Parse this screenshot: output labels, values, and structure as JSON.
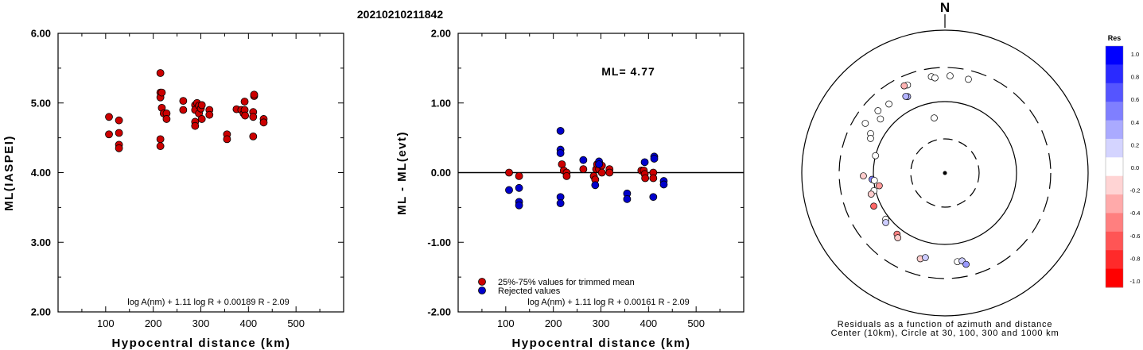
{
  "figure_title": "20210210211842",
  "chart_data": [
    {
      "type": "scatter",
      "title": "",
      "ylabel": "ML(IASPEI)",
      "xlabel": "Hypocentral distance (km)",
      "xlim": [
        0,
        600
      ],
      "ylim": [
        2.0,
        6.0
      ],
      "x_ticks": [
        "100",
        "200",
        "300",
        "400",
        "500"
      ],
      "y_ticks": [
        "2.00",
        "3.00",
        "4.00",
        "5.00",
        "6.00"
      ],
      "formula": "log A(nm) + 1.11 log R + 0.00189 R - 2.09",
      "marker_color": "#cc0000",
      "points": [
        [
          107,
          4.8
        ],
        [
          107,
          4.55
        ],
        [
          128,
          4.75
        ],
        [
          128,
          4.57
        ],
        [
          128,
          4.4
        ],
        [
          128,
          4.35
        ],
        [
          215,
          5.43
        ],
        [
          215,
          5.15
        ],
        [
          215,
          5.08
        ],
        [
          215,
          4.48
        ],
        [
          215,
          4.38
        ],
        [
          218,
          4.93
        ],
        [
          218,
          5.15
        ],
        [
          222,
          4.85
        ],
        [
          228,
          4.85
        ],
        [
          228,
          4.77
        ],
        [
          263,
          5.03
        ],
        [
          263,
          4.9
        ],
        [
          288,
          4.97
        ],
        [
          288,
          4.9
        ],
        [
          288,
          4.73
        ],
        [
          288,
          4.67
        ],
        [
          292,
          5.0
        ],
        [
          296,
          4.96
        ],
        [
          296,
          4.85
        ],
        [
          300,
          4.92
        ],
        [
          302,
          4.77
        ],
        [
          302,
          4.97
        ],
        [
          318,
          4.9
        ],
        [
          318,
          4.83
        ],
        [
          355,
          4.55
        ],
        [
          355,
          4.48
        ],
        [
          375,
          4.91
        ],
        [
          385,
          4.9
        ],
        [
          390,
          4.85
        ],
        [
          392,
          5.02
        ],
        [
          392,
          4.9
        ],
        [
          393,
          4.82
        ],
        [
          410,
          4.87
        ],
        [
          410,
          4.8
        ],
        [
          410,
          4.52
        ],
        [
          412,
          5.1
        ],
        [
          412,
          5.12
        ],
        [
          432,
          4.77
        ],
        [
          432,
          4.72
        ]
      ]
    },
    {
      "type": "scatter",
      "title": "",
      "ylabel": "ML - ML(evt)",
      "xlabel": "Hypocentral distance (km)",
      "xlim": [
        0,
        600
      ],
      "ylim": [
        -2.0,
        2.0
      ],
      "x_ticks": [
        "100",
        "200",
        "300",
        "400",
        "500"
      ],
      "y_ticks": [
        "-2.00",
        "-1.00",
        "0.00",
        "1.00",
        "2.00"
      ],
      "annotation": "ML=  4.77",
      "formula": "log A(nm) + 1.11 log R + 0.00161 R - 2.09",
      "legend": [
        {
          "label": "25%-75% values for trimmed mean",
          "color": "#cc0000"
        },
        {
          "label": "Rejected values",
          "color": "#0000cc"
        }
      ],
      "series": [
        {
          "name": "25%-75% values for trimmed mean",
          "color": "#cc0000",
          "points": [
            [
              107,
              0.0
            ],
            [
              128,
              -0.05
            ],
            [
              218,
              0.12
            ],
            [
              222,
              0.03
            ],
            [
              228,
              0.0
            ],
            [
              228,
              -0.05
            ],
            [
              263,
              0.05
            ],
            [
              285,
              -0.05
            ],
            [
              288,
              -0.1
            ],
            [
              290,
              0.05
            ],
            [
              292,
              0.12
            ],
            [
              296,
              0.05
            ],
            [
              302,
              0.1
            ],
            [
              302,
              0.0
            ],
            [
              318,
              0.05
            ],
            [
              318,
              0.0
            ],
            [
              385,
              0.03
            ],
            [
              390,
              0.03
            ],
            [
              392,
              -0.02
            ],
            [
              393,
              -0.08
            ],
            [
              410,
              0.0
            ],
            [
              410,
              -0.08
            ]
          ]
        },
        {
          "name": "Rejected values",
          "color": "#0000cc",
          "points": [
            [
              107,
              -0.25
            ],
            [
              128,
              -0.22
            ],
            [
              128,
              -0.42
            ],
            [
              128,
              -0.47
            ],
            [
              215,
              0.6
            ],
            [
              215,
              0.33
            ],
            [
              215,
              0.28
            ],
            [
              215,
              -0.35
            ],
            [
              215,
              -0.44
            ],
            [
              263,
              0.18
            ],
            [
              288,
              -0.18
            ],
            [
              296,
              0.16
            ],
            [
              296,
              0.12
            ],
            [
              355,
              -0.3
            ],
            [
              355,
              -0.38
            ],
            [
              392,
              0.15
            ],
            [
              410,
              -0.35
            ],
            [
              412,
              0.23
            ],
            [
              412,
              0.2
            ],
            [
              432,
              -0.12
            ],
            [
              432,
              -0.17
            ]
          ]
        }
      ]
    },
    {
      "type": "scatter",
      "title": "N",
      "subtitle": "Residuals as a function of azimuth and distance",
      "caption": "Center (10km), Circle at 30, 100, 300 and 1000 km",
      "colorbar_title": "Res",
      "colorbar_ticks": [
        "1.0",
        "0.8",
        "0.6",
        "0.4",
        "0.2",
        "0.0",
        "-0.2",
        "-0.4",
        "-0.6",
        "-0.8",
        "-1.0"
      ],
      "colorbar_colors": [
        "#0000ff",
        "#2a2aff",
        "#5555ff",
        "#7f7fff",
        "#aaaaff",
        "#d4d4ff",
        "#ffffff",
        "#ffd4d4",
        "#ffaaaa",
        "#ff7f7f",
        "#ff5555",
        "#ff2a2a",
        "#ff0000"
      ],
      "points": [
        {
          "azimuth": 337,
          "distance": 218,
          "residual": 0.0
        },
        {
          "azimuth": 335,
          "distance": 222,
          "residual": -0.3
        },
        {
          "azimuth": 352,
          "distance": 230,
          "residual": 0.0
        },
        {
          "azimuth": 354,
          "distance": 218,
          "residual": 0.0
        },
        {
          "azimuth": 3,
          "distance": 230,
          "residual": 0.0
        },
        {
          "azimuth": 14,
          "distance": 225,
          "residual": 0.0
        },
        {
          "azimuth": 334,
          "distance": 155,
          "residual": 0.3
        },
        {
          "azimuth": 333,
          "distance": 160,
          "residual": 0.3
        },
        {
          "azimuth": 321,
          "distance": 175,
          "residual": 0.0
        },
        {
          "azimuth": 313,
          "distance": 190,
          "residual": 0.0
        },
        {
          "azimuth": 310,
          "distance": 150,
          "residual": 0.0
        },
        {
          "azimuth": 302,
          "distance": 205,
          "residual": 0.0
        },
        {
          "azimuth": 298,
          "distance": 150,
          "residual": 0.0
        },
        {
          "azimuth": 295,
          "distance": 140,
          "residual": 0.0
        },
        {
          "azimuth": 284,
          "distance": 100,
          "residual": 0.0
        },
        {
          "azimuth": 268,
          "distance": 138,
          "residual": -0.2
        },
        {
          "azimuth": 265,
          "distance": 105,
          "residual": 0.5
        },
        {
          "azimuth": 264,
          "distance": 98,
          "residual": 0.0
        },
        {
          "azimuth": 259,
          "distance": 86,
          "residual": -0.4
        },
        {
          "azimuth": 256,
          "distance": 105,
          "residual": 0.0
        },
        {
          "azimuth": 254,
          "distance": 118,
          "residual": -0.2
        },
        {
          "azimuth": 245,
          "distance": 125,
          "residual": -0.6
        },
        {
          "azimuth": 232,
          "distance": 112,
          "residual": 0.0
        },
        {
          "azimuth": 230,
          "distance": 120,
          "residual": 0.2
        },
        {
          "azimuth": 218,
          "distance": 122,
          "residual": -0.5
        },
        {
          "azimuth": 216,
          "distance": 132,
          "residual": -0.2
        },
        {
          "azimuth": 196,
          "distance": 177,
          "residual": -0.2
        },
        {
          "azimuth": 193,
          "distance": 164,
          "residual": 0.2
        },
        {
          "azimuth": 172,
          "distance": 179,
          "residual": 0.0
        },
        {
          "azimuth": 169,
          "distance": 179,
          "residual": 0.2
        },
        {
          "azimuth": 167,
          "distance": 205,
          "residual": 0.4
        },
        {
          "azimuth": 349,
          "distance": 61,
          "residual": 0.0
        }
      ]
    }
  ]
}
